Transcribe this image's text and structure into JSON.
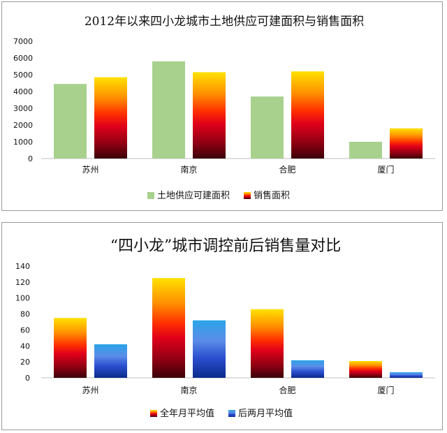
{
  "chart_data": [
    {
      "type": "bar",
      "title": "2012年以来四小龙城市土地供应可建面积与销售面积",
      "categories": [
        "苏州",
        "南京",
        "合肥",
        "厦门"
      ],
      "series": [
        {
          "name": "土地供应可建面积",
          "values": [
            4450,
            5800,
            3700,
            1000
          ],
          "color": "#a9d18e"
        },
        {
          "name": "销售面积",
          "values": [
            4850,
            5150,
            5200,
            1800
          ],
          "color": "#ff6a00"
        }
      ],
      "ylim": [
        0,
        7000
      ],
      "yticks": [
        "0",
        "1000",
        "2000",
        "3000",
        "4000",
        "5000",
        "6000",
        "7000"
      ],
      "legend_position": "bottom",
      "grid": false
    },
    {
      "type": "bar",
      "title": "“四小龙”城市调控前后销售量对比",
      "categories": [
        "苏州",
        "南京",
        "合肥",
        "厦门"
      ],
      "series": [
        {
          "name": "全年月平均值",
          "values": [
            75,
            125,
            86,
            21
          ],
          "color": "#ff4a00"
        },
        {
          "name": "后两月平均值",
          "values": [
            42,
            72,
            22,
            7
          ],
          "color": "#2f6fd6"
        }
      ],
      "ylim": [
        0,
        140
      ],
      "yticks": [
        "0",
        "20",
        "40",
        "60",
        "80",
        "100",
        "120",
        "140"
      ],
      "legend_position": "bottom",
      "grid": false
    }
  ]
}
